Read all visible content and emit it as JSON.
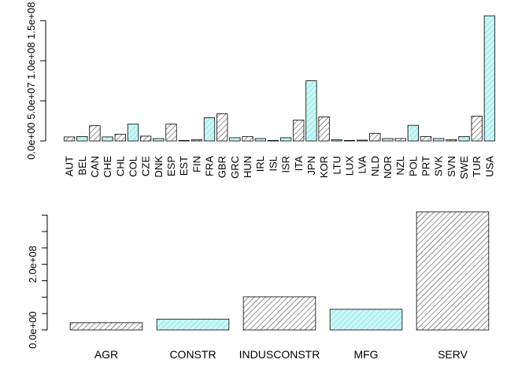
{
  "colors": {
    "dark": "#3a3a3a",
    "cyan": "#5fdede",
    "cyan_fill": "#ccf6f6",
    "white": "#ffffff"
  },
  "chart_data": [
    {
      "type": "bar",
      "categories": [
        "AUT",
        "BEL",
        "CAN",
        "CHE",
        "CHL",
        "COL",
        "CZE",
        "DNK",
        "ESP",
        "EST",
        "FIN",
        "FRA",
        "GBR",
        "GRC",
        "HUN",
        "IRL",
        "ISL",
        "ISR",
        "ITA",
        "JPN",
        "KOR",
        "LTU",
        "LUX",
        "LVA",
        "NLD",
        "NOR",
        "NZL",
        "POL",
        "PRT",
        "SVK",
        "SVN",
        "SWE",
        "TUR",
        "USA"
      ],
      "values": [
        5000000,
        5500000,
        19000000,
        5000000,
        8500000,
        21000000,
        6000000,
        3000000,
        21000000,
        500000,
        1500000,
        29000000,
        34000000,
        4000000,
        5500000,
        3000000,
        500000,
        4000000,
        26000000,
        75000000,
        30000000,
        1500000,
        500000,
        1000000,
        9500000,
        3000000,
        3000000,
        19500000,
        5500000,
        3000000,
        1500000,
        5500000,
        31000000,
        156000000
      ],
      "fills": [
        "dark",
        "cyan",
        "dark",
        "cyan",
        "dark",
        "cyan",
        "dark",
        "cyan",
        "dark",
        "cyan",
        "dark",
        "cyan",
        "dark",
        "cyan",
        "dark",
        "cyan",
        "dark",
        "cyan",
        "dark",
        "cyan",
        "dark",
        "cyan",
        "dark",
        "cyan",
        "dark",
        "cyan",
        "dark",
        "cyan",
        "dark",
        "cyan",
        "dark",
        "cyan",
        "dark",
        "cyan"
      ],
      "ylim": [
        0,
        160000000
      ],
      "yticks": [
        0,
        50000000,
        100000000,
        150000000
      ],
      "ytick_labels": [
        "0.0e+00",
        "5.0e+07",
        "1.0e+08",
        "1.5e+08"
      ],
      "title": "",
      "xlabel": "",
      "ylabel": ""
    },
    {
      "type": "bar",
      "categories": [
        "AGR",
        "CONSTR",
        "INDUSCONSTR",
        "MFG",
        "SERV"
      ],
      "values": [
        22000000,
        33000000,
        101000000,
        63000000,
        360000000
      ],
      "fills": [
        "dark",
        "cyan",
        "dark",
        "cyan",
        "dark"
      ],
      "ylim": [
        0,
        360000000
      ],
      "yticks": [
        0,
        50000000,
        100000000,
        150000000,
        200000000,
        250000000,
        300000000,
        350000000
      ],
      "ytick_labels": [
        "0.0e+00",
        "",
        "",
        "",
        "2.0e+08",
        "",
        "",
        ""
      ],
      "title": "",
      "xlabel": "",
      "ylabel": ""
    }
  ]
}
